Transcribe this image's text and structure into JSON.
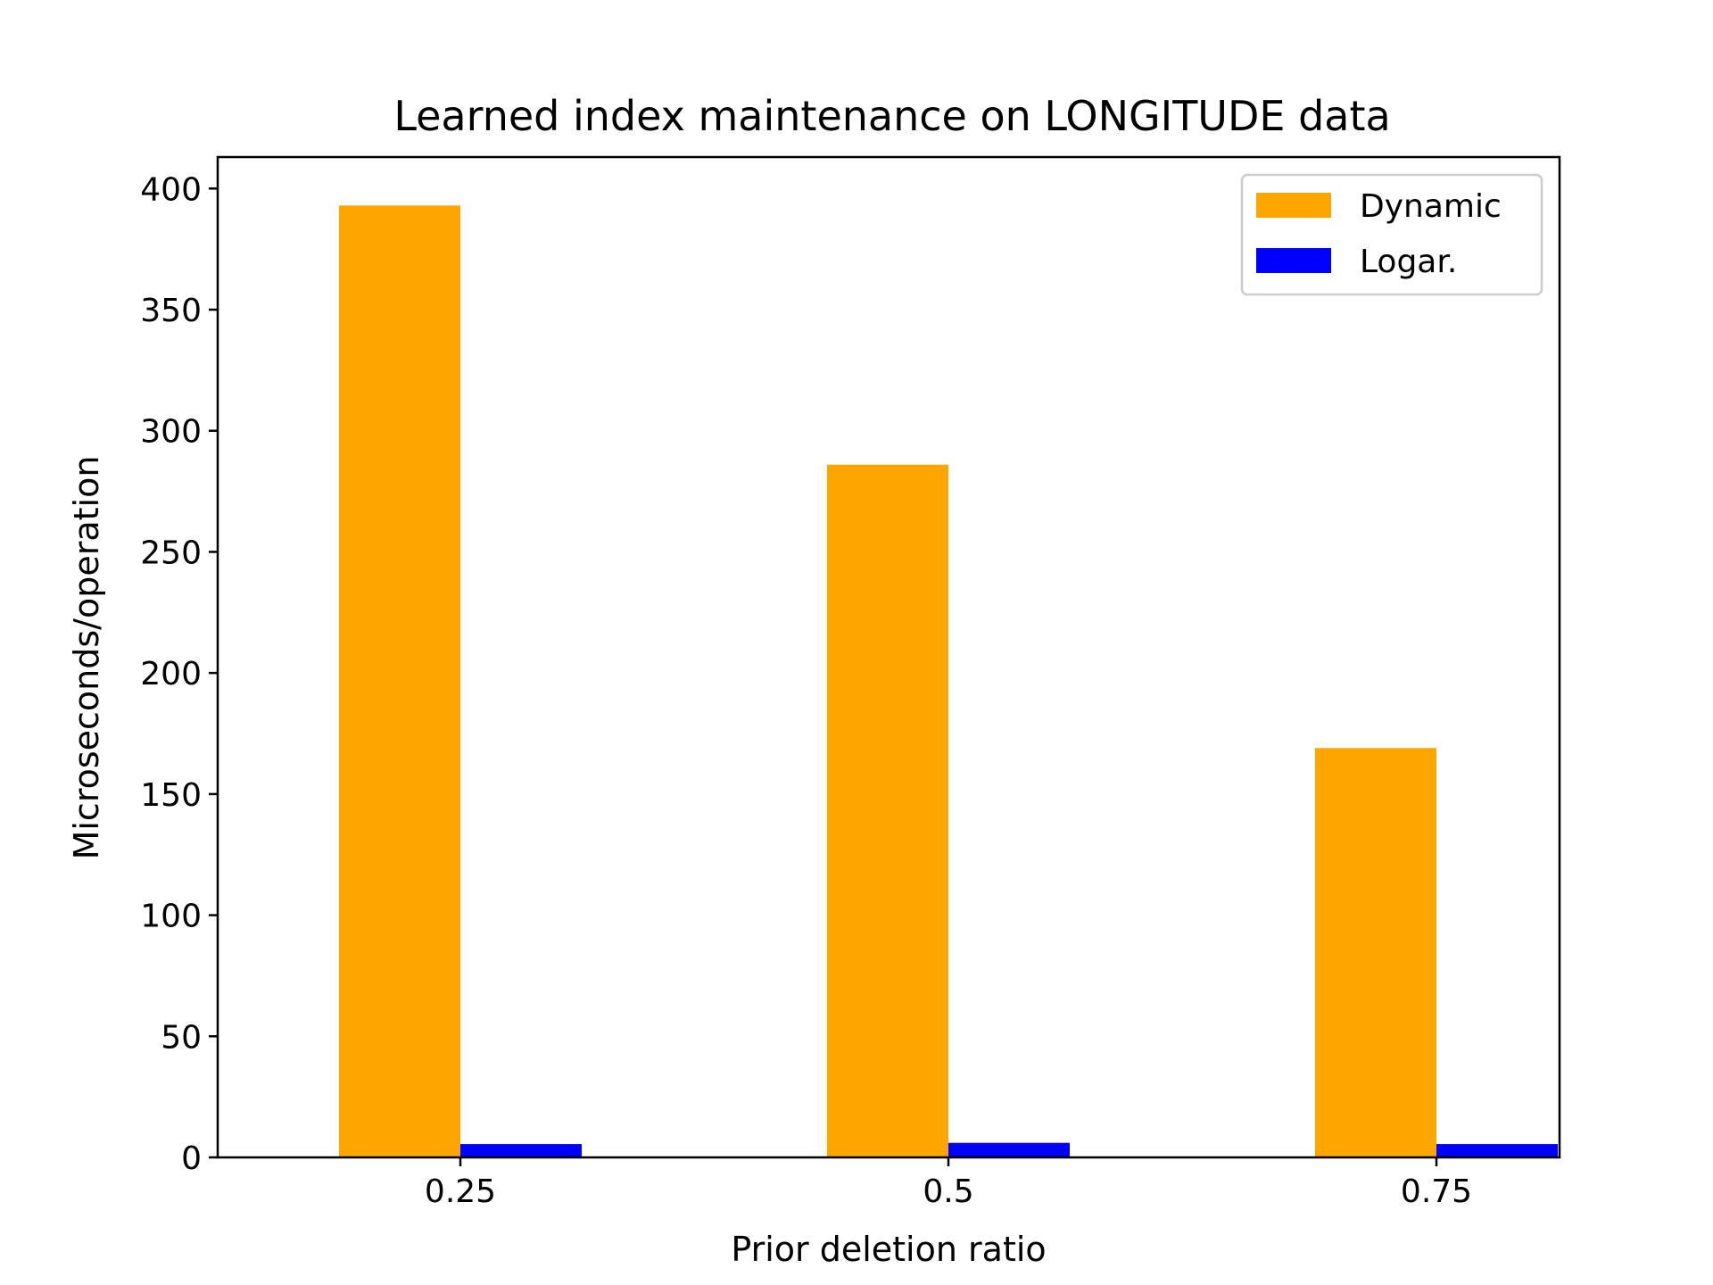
{
  "chart_data": {
    "type": "bar",
    "title": "Learned index maintenance on LONGITUDE data",
    "xlabel": "Prior deletion ratio",
    "ylabel": "Microseconds/operation",
    "categories": [
      "0.25",
      "0.5",
      "0.75"
    ],
    "series": [
      {
        "name": "Dynamic",
        "color": "#FFA500",
        "values": [
          393,
          286,
          169
        ]
      },
      {
        "name": "Logar.",
        "color": "#0000FF",
        "values": [
          5.5,
          6,
          5.5
        ]
      }
    ],
    "ylim": [
      0,
      413
    ],
    "yticks": [
      0,
      50,
      100,
      150,
      200,
      250,
      300,
      350,
      400
    ],
    "legend": "top-right",
    "grid": false
  }
}
